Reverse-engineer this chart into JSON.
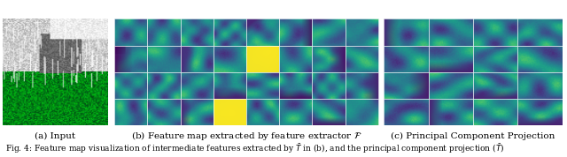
{
  "panel_a_label": "(a) Input",
  "panel_b_label": "(b) Feature map extracted by feature extractor $\\mathcal{F}$",
  "panel_c_label": "(c) Principal Component Projection",
  "bg_color": "#ffffff",
  "caption_fontsize": 6.5,
  "label_fontsize": 7.5,
  "fig_width": 6.4,
  "fig_height": 1.78,
  "dpi": 100,
  "n_feature_cols": 8,
  "n_feature_rows": 4,
  "n_pcp_cols": 4,
  "n_pcp_rows": 4
}
